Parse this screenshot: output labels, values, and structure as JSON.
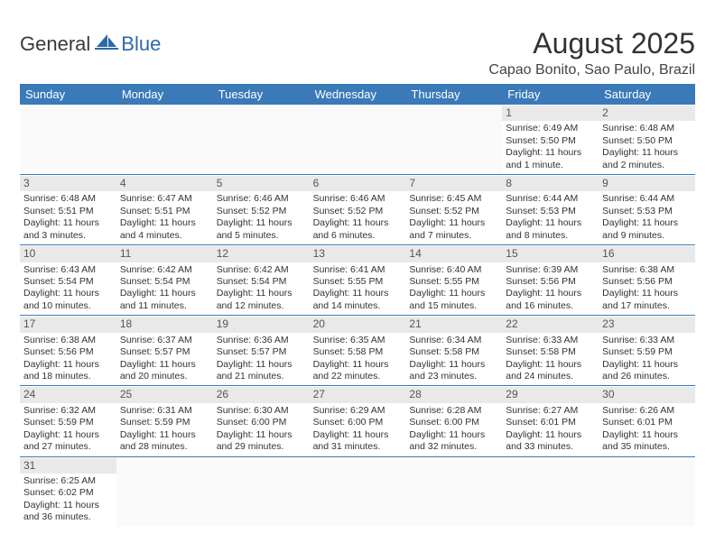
{
  "logo": {
    "text1": "General",
    "text2": "Blue"
  },
  "colors": {
    "header_bg": "#3a7ab8",
    "header_text": "#ffffff",
    "daynum_bg": "#e9e9e9",
    "week_border": "#3a7ab8",
    "logo_blue": "#2f6aa8"
  },
  "title": "August 2025",
  "location": "Capao Bonito, Sao Paulo, Brazil",
  "weekdays": [
    "Sunday",
    "Monday",
    "Tuesday",
    "Wednesday",
    "Thursday",
    "Friday",
    "Saturday"
  ],
  "weeks": [
    [
      null,
      null,
      null,
      null,
      null,
      {
        "n": "1",
        "sr": "Sunrise: 6:49 AM",
        "ss": "Sunset: 5:50 PM",
        "d1": "Daylight: 11 hours",
        "d2": "and 1 minute."
      },
      {
        "n": "2",
        "sr": "Sunrise: 6:48 AM",
        "ss": "Sunset: 5:50 PM",
        "d1": "Daylight: 11 hours",
        "d2": "and 2 minutes."
      }
    ],
    [
      {
        "n": "3",
        "sr": "Sunrise: 6:48 AM",
        "ss": "Sunset: 5:51 PM",
        "d1": "Daylight: 11 hours",
        "d2": "and 3 minutes."
      },
      {
        "n": "4",
        "sr": "Sunrise: 6:47 AM",
        "ss": "Sunset: 5:51 PM",
        "d1": "Daylight: 11 hours",
        "d2": "and 4 minutes."
      },
      {
        "n": "5",
        "sr": "Sunrise: 6:46 AM",
        "ss": "Sunset: 5:52 PM",
        "d1": "Daylight: 11 hours",
        "d2": "and 5 minutes."
      },
      {
        "n": "6",
        "sr": "Sunrise: 6:46 AM",
        "ss": "Sunset: 5:52 PM",
        "d1": "Daylight: 11 hours",
        "d2": "and 6 minutes."
      },
      {
        "n": "7",
        "sr": "Sunrise: 6:45 AM",
        "ss": "Sunset: 5:52 PM",
        "d1": "Daylight: 11 hours",
        "d2": "and 7 minutes."
      },
      {
        "n": "8",
        "sr": "Sunrise: 6:44 AM",
        "ss": "Sunset: 5:53 PM",
        "d1": "Daylight: 11 hours",
        "d2": "and 8 minutes."
      },
      {
        "n": "9",
        "sr": "Sunrise: 6:44 AM",
        "ss": "Sunset: 5:53 PM",
        "d1": "Daylight: 11 hours",
        "d2": "and 9 minutes."
      }
    ],
    [
      {
        "n": "10",
        "sr": "Sunrise: 6:43 AM",
        "ss": "Sunset: 5:54 PM",
        "d1": "Daylight: 11 hours",
        "d2": "and 10 minutes."
      },
      {
        "n": "11",
        "sr": "Sunrise: 6:42 AM",
        "ss": "Sunset: 5:54 PM",
        "d1": "Daylight: 11 hours",
        "d2": "and 11 minutes."
      },
      {
        "n": "12",
        "sr": "Sunrise: 6:42 AM",
        "ss": "Sunset: 5:54 PM",
        "d1": "Daylight: 11 hours",
        "d2": "and 12 minutes."
      },
      {
        "n": "13",
        "sr": "Sunrise: 6:41 AM",
        "ss": "Sunset: 5:55 PM",
        "d1": "Daylight: 11 hours",
        "d2": "and 14 minutes."
      },
      {
        "n": "14",
        "sr": "Sunrise: 6:40 AM",
        "ss": "Sunset: 5:55 PM",
        "d1": "Daylight: 11 hours",
        "d2": "and 15 minutes."
      },
      {
        "n": "15",
        "sr": "Sunrise: 6:39 AM",
        "ss": "Sunset: 5:56 PM",
        "d1": "Daylight: 11 hours",
        "d2": "and 16 minutes."
      },
      {
        "n": "16",
        "sr": "Sunrise: 6:38 AM",
        "ss": "Sunset: 5:56 PM",
        "d1": "Daylight: 11 hours",
        "d2": "and 17 minutes."
      }
    ],
    [
      {
        "n": "17",
        "sr": "Sunrise: 6:38 AM",
        "ss": "Sunset: 5:56 PM",
        "d1": "Daylight: 11 hours",
        "d2": "and 18 minutes."
      },
      {
        "n": "18",
        "sr": "Sunrise: 6:37 AM",
        "ss": "Sunset: 5:57 PM",
        "d1": "Daylight: 11 hours",
        "d2": "and 20 minutes."
      },
      {
        "n": "19",
        "sr": "Sunrise: 6:36 AM",
        "ss": "Sunset: 5:57 PM",
        "d1": "Daylight: 11 hours",
        "d2": "and 21 minutes."
      },
      {
        "n": "20",
        "sr": "Sunrise: 6:35 AM",
        "ss": "Sunset: 5:58 PM",
        "d1": "Daylight: 11 hours",
        "d2": "and 22 minutes."
      },
      {
        "n": "21",
        "sr": "Sunrise: 6:34 AM",
        "ss": "Sunset: 5:58 PM",
        "d1": "Daylight: 11 hours",
        "d2": "and 23 minutes."
      },
      {
        "n": "22",
        "sr": "Sunrise: 6:33 AM",
        "ss": "Sunset: 5:58 PM",
        "d1": "Daylight: 11 hours",
        "d2": "and 24 minutes."
      },
      {
        "n": "23",
        "sr": "Sunrise: 6:33 AM",
        "ss": "Sunset: 5:59 PM",
        "d1": "Daylight: 11 hours",
        "d2": "and 26 minutes."
      }
    ],
    [
      {
        "n": "24",
        "sr": "Sunrise: 6:32 AM",
        "ss": "Sunset: 5:59 PM",
        "d1": "Daylight: 11 hours",
        "d2": "and 27 minutes."
      },
      {
        "n": "25",
        "sr": "Sunrise: 6:31 AM",
        "ss": "Sunset: 5:59 PM",
        "d1": "Daylight: 11 hours",
        "d2": "and 28 minutes."
      },
      {
        "n": "26",
        "sr": "Sunrise: 6:30 AM",
        "ss": "Sunset: 6:00 PM",
        "d1": "Daylight: 11 hours",
        "d2": "and 29 minutes."
      },
      {
        "n": "27",
        "sr": "Sunrise: 6:29 AM",
        "ss": "Sunset: 6:00 PM",
        "d1": "Daylight: 11 hours",
        "d2": "and 31 minutes."
      },
      {
        "n": "28",
        "sr": "Sunrise: 6:28 AM",
        "ss": "Sunset: 6:00 PM",
        "d1": "Daylight: 11 hours",
        "d2": "and 32 minutes."
      },
      {
        "n": "29",
        "sr": "Sunrise: 6:27 AM",
        "ss": "Sunset: 6:01 PM",
        "d1": "Daylight: 11 hours",
        "d2": "and 33 minutes."
      },
      {
        "n": "30",
        "sr": "Sunrise: 6:26 AM",
        "ss": "Sunset: 6:01 PM",
        "d1": "Daylight: 11 hours",
        "d2": "and 35 minutes."
      }
    ],
    [
      {
        "n": "31",
        "sr": "Sunrise: 6:25 AM",
        "ss": "Sunset: 6:02 PM",
        "d1": "Daylight: 11 hours",
        "d2": "and 36 minutes."
      },
      null,
      null,
      null,
      null,
      null,
      null
    ]
  ]
}
